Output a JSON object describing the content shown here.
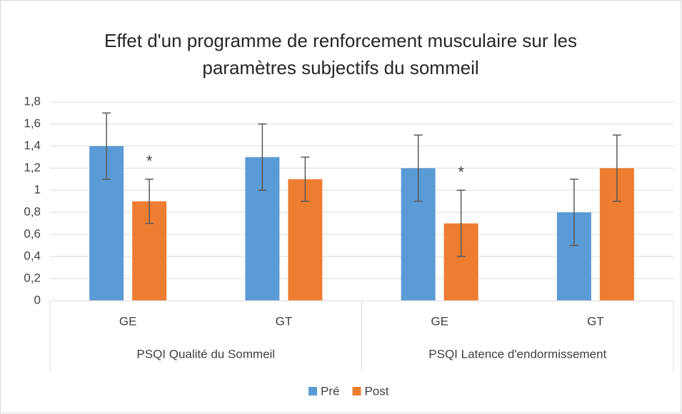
{
  "chart_data": {
    "type": "bar",
    "title": "Effet d'un programme de renforcement musculaire sur les paramètres subjectifs du sommeil",
    "categories": [
      "GE",
      "GT",
      "GE",
      "GT"
    ],
    "category_groups": [
      "PSQI Qualité du Sommeil",
      "PSQI Latence d'endormissement"
    ],
    "series": [
      {
        "name": "Pré",
        "color": "#5b9bd5",
        "values": [
          1.4,
          1.3,
          1.2,
          0.8
        ],
        "errors": [
          0.3,
          0.3,
          0.3,
          0.3
        ]
      },
      {
        "name": "Post",
        "color": "#ed7d31",
        "values": [
          0.9,
          1.1,
          0.7,
          1.2
        ],
        "errors": [
          0.2,
          0.2,
          0.3,
          0.3
        ],
        "annotations": [
          "*",
          null,
          "*",
          null
        ]
      }
    ],
    "ylim": [
      0,
      1.8
    ],
    "yticks": [
      0,
      {
        "value": 0.2,
        "label": "0,2"
      },
      {
        "value": 0.4,
        "label": "0,4"
      },
      {
        "value": 0.6,
        "label": "0,6"
      },
      {
        "value": 0.8,
        "label": "0,8"
      },
      1,
      {
        "value": 1.2,
        "label": "1,2"
      },
      {
        "value": 1.4,
        "label": "1,4"
      },
      {
        "value": 1.6,
        "label": "1,6"
      },
      {
        "value": 1.8,
        "label": "1,8"
      }
    ],
    "grid": true,
    "legend": "bottom"
  }
}
